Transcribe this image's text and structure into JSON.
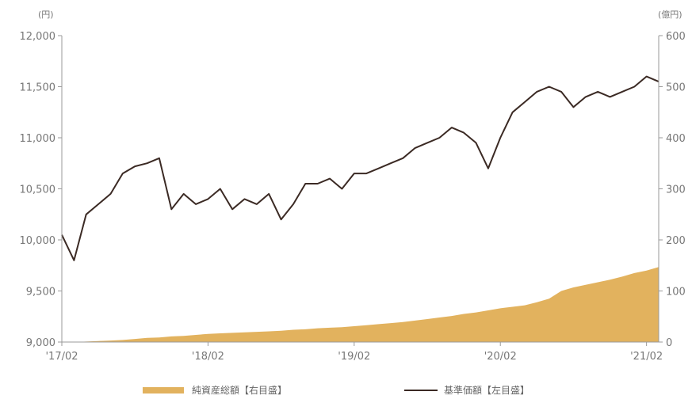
{
  "chart_data": {
    "type": "line",
    "left_unit": "(円)",
    "right_unit": "(億円)",
    "x_ticks": [
      "'17/02",
      "'18/02",
      "'19/02",
      "'20/02",
      "'21/02"
    ],
    "y_left": {
      "min": 9000,
      "max": 12000,
      "ticks": [
        "9,000",
        "9,500",
        "10,000",
        "10,500",
        "11,000",
        "11,500",
        "12,000"
      ]
    },
    "y_right": {
      "min": 0,
      "max": 600,
      "ticks": [
        "0",
        "100",
        "200",
        "300",
        "400",
        "500",
        "600"
      ]
    },
    "x": [
      "2017-02",
      "2017-03",
      "2017-04",
      "2017-05",
      "2017-06",
      "2017-07",
      "2017-08",
      "2017-09",
      "2017-10",
      "2017-11",
      "2017-12",
      "2018-01",
      "2018-02",
      "2018-03",
      "2018-04",
      "2018-05",
      "2018-06",
      "2018-07",
      "2018-08",
      "2018-09",
      "2018-10",
      "2018-11",
      "2018-12",
      "2019-01",
      "2019-02",
      "2019-03",
      "2019-04",
      "2019-05",
      "2019-06",
      "2019-07",
      "2019-08",
      "2019-09",
      "2019-10",
      "2019-11",
      "2019-12",
      "2020-01",
      "2020-02",
      "2020-03",
      "2020-04",
      "2020-05",
      "2020-06",
      "2020-07",
      "2020-08",
      "2020-09",
      "2020-10",
      "2020-11",
      "2020-12",
      "2021-01",
      "2021-02",
      "2021-03"
    ],
    "series": [
      {
        "name": "純資産総額【右目盛】",
        "axis": "right",
        "kind": "area",
        "color": "#E2B25E",
        "values": [
          0,
          0,
          1,
          2,
          3,
          4,
          6,
          8,
          9,
          11,
          12,
          14,
          16,
          17,
          18,
          19,
          20,
          21,
          22,
          24,
          25,
          27,
          28,
          29,
          31,
          33,
          35,
          37,
          39,
          42,
          45,
          48,
          51,
          55,
          58,
          62,
          66,
          69,
          72,
          78,
          85,
          100,
          107,
          112,
          117,
          122,
          128,
          135,
          140,
          147
        ]
      },
      {
        "name": "基準価額【左目盛】",
        "axis": "left",
        "kind": "line",
        "color": "#3b2a24",
        "values": [
          10050,
          9800,
          10250,
          10350,
          10450,
          10650,
          10720,
          10750,
          10800,
          10300,
          10450,
          10350,
          10400,
          10500,
          10300,
          10400,
          10350,
          10450,
          10200,
          10350,
          10550,
          10550,
          10600,
          10500,
          10650,
          10650,
          10700,
          10750,
          10800,
          10900,
          10950,
          11000,
          11100,
          11050,
          10950,
          10700,
          11000,
          11250,
          11350,
          11450,
          11500,
          11450,
          11300,
          11400,
          11450,
          11400,
          11450,
          11500,
          11600,
          11550
        ]
      }
    ],
    "legend": [
      "純資産総額【右目盛】",
      "基準価額【左目盛】"
    ],
    "legend_position": "bottom"
  }
}
